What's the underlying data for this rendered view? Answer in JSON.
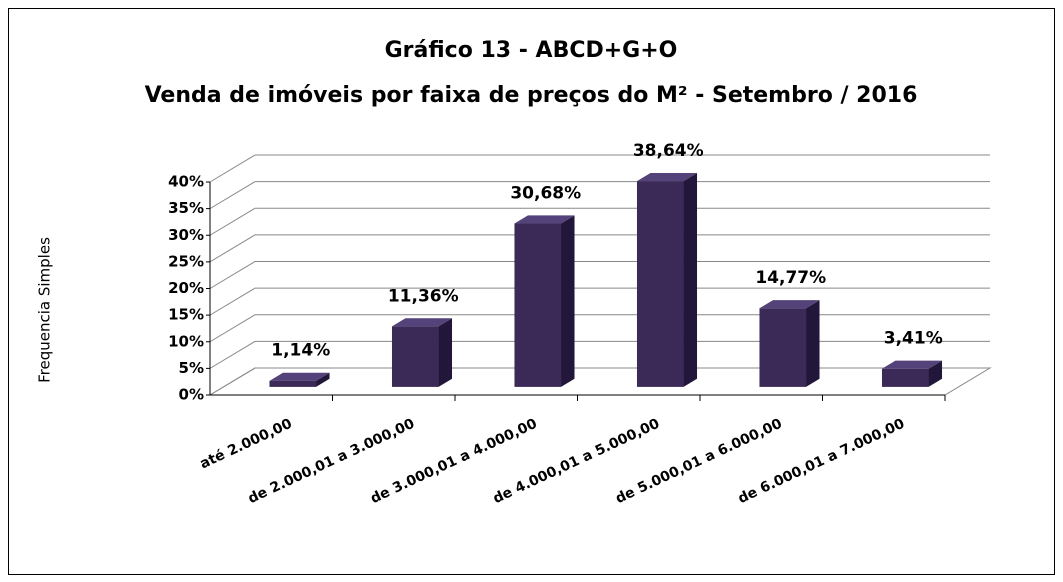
{
  "chart_data": {
    "type": "bar3d",
    "title": "Gráfico 13 - ABCD+G+O",
    "subtitle": "Venda de imóveis por faixa de preços do M² - Setembro / 2016",
    "y_label": "Frequencia Simples",
    "categories": [
      "até 2.000,00",
      "de 2.000,01 a 3.000,00",
      "de 3.000,01 a 4.000,00",
      "de 4.000,01 a 5.000,00",
      "de 5.000,01 a 6.000,00",
      "de 6.000,01 a 7.000,00"
    ],
    "values": [
      1.14,
      11.36,
      30.68,
      38.64,
      14.77,
      3.41
    ],
    "value_labels": [
      "1,14%",
      "11,36%",
      "30,68%",
      "38,64%",
      "14,77%",
      "3,41%"
    ],
    "color": "#3b2a58",
    "ylim": [
      0,
      40
    ],
    "yticks": [
      {
        "value": 0,
        "label": "0%"
      },
      {
        "value": 5,
        "label": "5%"
      },
      {
        "value": 10,
        "label": "10%"
      },
      {
        "value": 15,
        "label": "15%"
      },
      {
        "value": 20,
        "label": "20%"
      },
      {
        "value": 25,
        "label": "25%"
      },
      {
        "value": 30,
        "label": "30%"
      },
      {
        "value": 35,
        "label": "35%"
      },
      {
        "value": 40,
        "label": "40%"
      }
    ],
    "grid": true
  }
}
